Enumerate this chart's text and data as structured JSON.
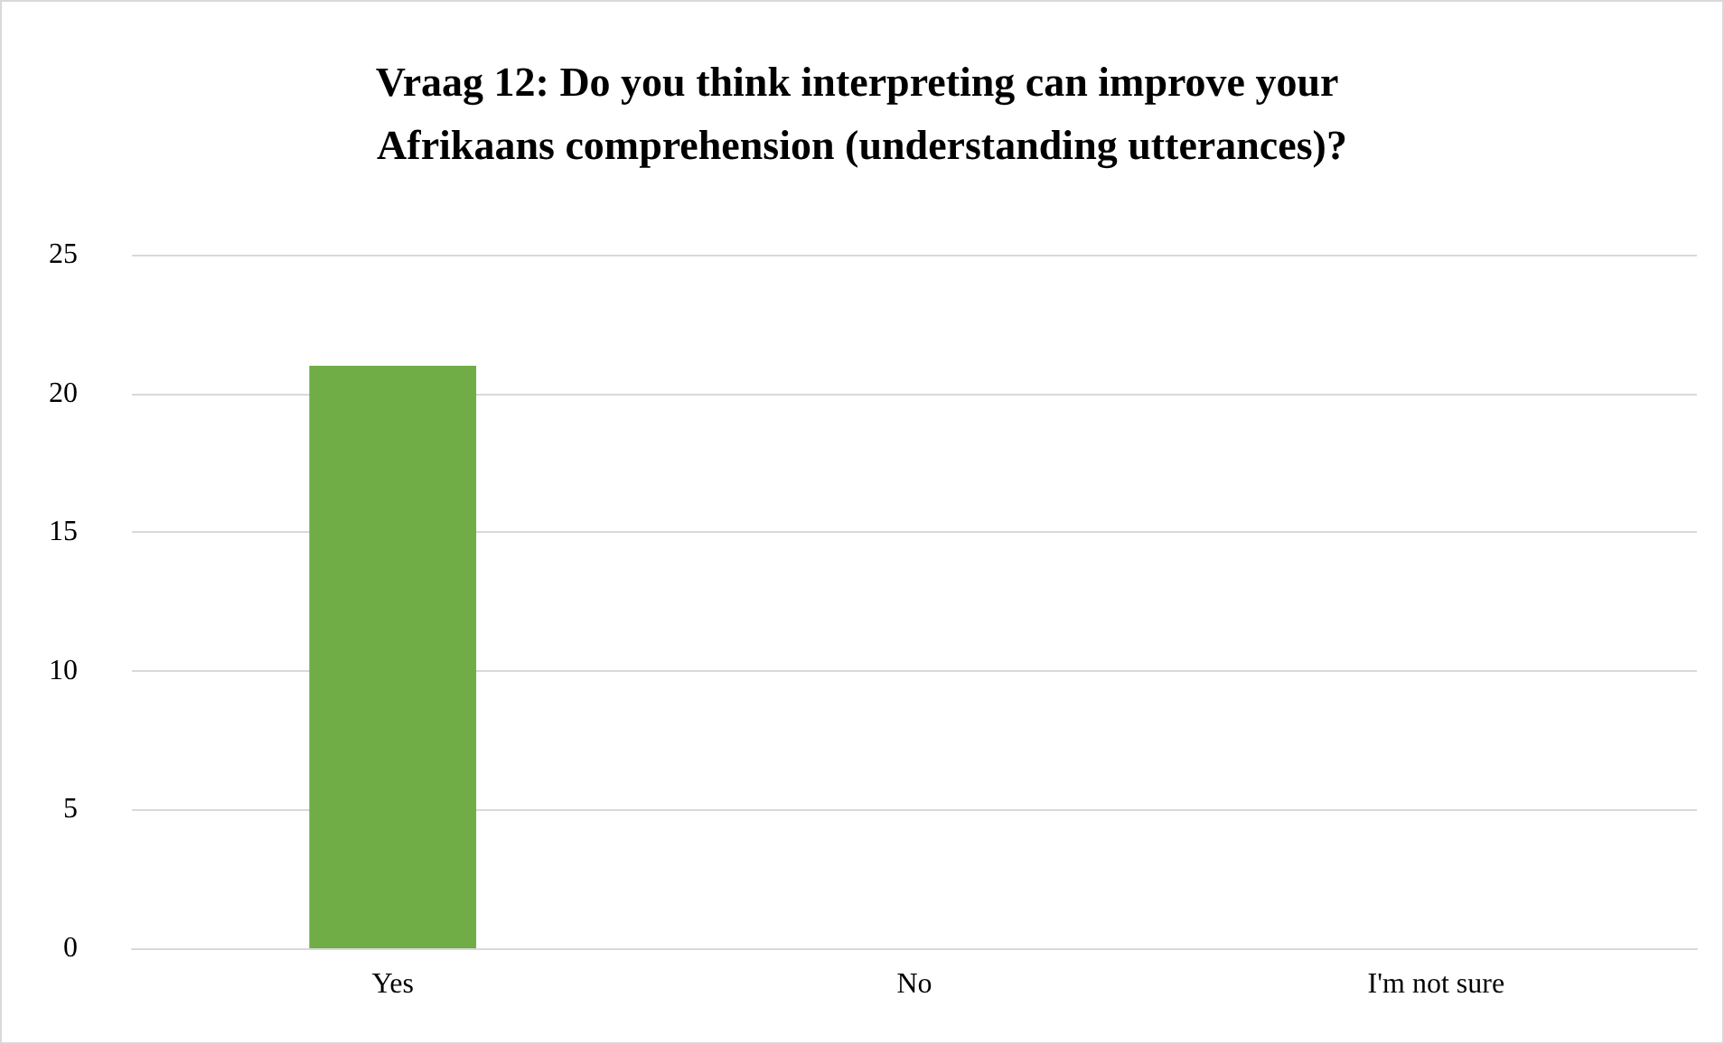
{
  "chart_data": {
    "type": "bar",
    "title": "Vraag 12: Do you think interpreting can improve your Afrikaans comprehension (understanding utterances)?",
    "categories": [
      "Yes",
      "No",
      "I'm not sure"
    ],
    "values": [
      21,
      0,
      0
    ],
    "color": "#70ad47",
    "ylim": [
      0,
      25
    ],
    "yticks": [
      0,
      5,
      10,
      15,
      20,
      25
    ],
    "grid": "y"
  }
}
